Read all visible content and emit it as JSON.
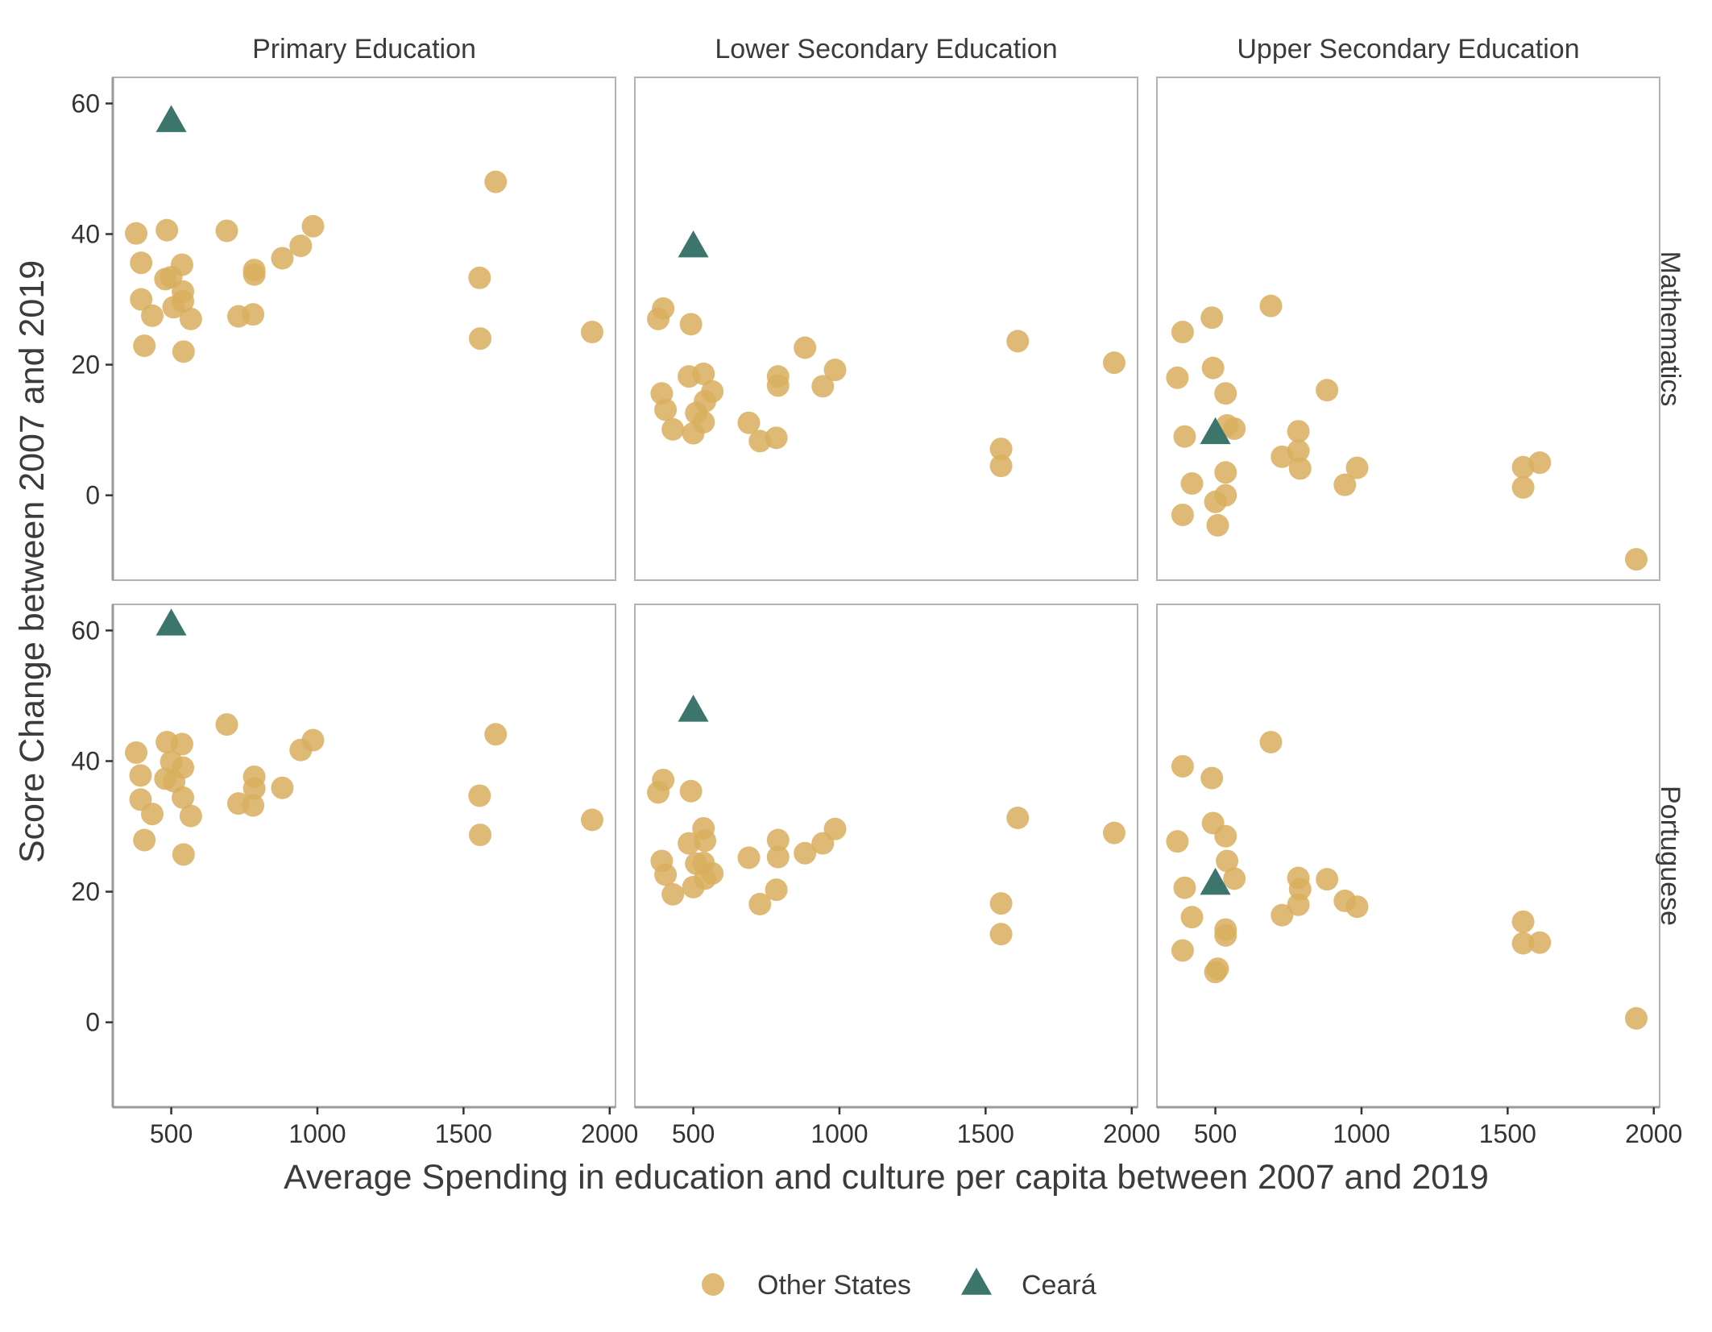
{
  "chart_data": {
    "type": "scatter",
    "facets": {
      "columns": [
        "Primary Education",
        "Lower Secondary Education",
        "Upper Secondary Education"
      ],
      "rows": [
        "Mathematics",
        "Portuguese"
      ]
    },
    "xlabel": "Average Spending in education and culture per capita between 2007 and 2019",
    "ylabel": "Score Change between 2007 and 2019",
    "x_ticks": [
      "500",
      "1000",
      "1500",
      "2000"
    ],
    "y_ticks": [
      "0",
      "20",
      "40",
      "60"
    ],
    "xlim": [
      300,
      2020
    ],
    "ylim": [
      -13,
      64
    ],
    "legend": {
      "position": "bottom",
      "items": [
        {
          "label": "Other States",
          "shape": "circle",
          "color": "#D9AE5E"
        },
        {
          "label": "Ceará",
          "shape": "triangle",
          "color": "#3C756C"
        }
      ]
    },
    "colors": {
      "other_states": "#D9AE5E",
      "ceara": "#3C756C"
    },
    "panels": [
      {
        "row": "Mathematics",
        "column": "Primary Education",
        "ceara": {
          "x": 500,
          "y": 57.2
        },
        "other_states": [
          [
            380,
            40.1
          ],
          [
            397,
            35.6
          ],
          [
            397,
            30.0
          ],
          [
            408,
            22.9
          ],
          [
            435,
            27.5
          ],
          [
            485,
            40.6
          ],
          [
            480,
            33.1
          ],
          [
            500,
            33.4
          ],
          [
            508,
            28.8
          ],
          [
            537,
            35.3
          ],
          [
            540,
            31.2
          ],
          [
            540,
            29.7
          ],
          [
            542,
            22.0
          ],
          [
            567,
            27.0
          ],
          [
            690,
            40.5
          ],
          [
            730,
            27.4
          ],
          [
            780,
            27.7
          ],
          [
            784,
            33.8
          ],
          [
            784,
            34.5
          ],
          [
            880,
            36.3
          ],
          [
            943,
            38.2
          ],
          [
            985,
            41.2
          ],
          [
            1555,
            33.3
          ],
          [
            1557,
            24.0
          ],
          [
            1610,
            48.0
          ],
          [
            1940,
            25.0
          ]
        ]
      },
      {
        "row": "Mathematics",
        "column": "Lower Secondary Education",
        "ceara": {
          "x": 500,
          "y": 38.0
        },
        "other_states": [
          [
            380,
            27.0
          ],
          [
            397,
            28.6
          ],
          [
            392,
            15.6
          ],
          [
            405,
            13.1
          ],
          [
            430,
            10.1
          ],
          [
            485,
            18.2
          ],
          [
            492,
            26.2
          ],
          [
            500,
            9.5
          ],
          [
            510,
            12.6
          ],
          [
            535,
            18.6
          ],
          [
            540,
            14.4
          ],
          [
            535,
            11.2
          ],
          [
            565,
            15.9
          ],
          [
            690,
            11.1
          ],
          [
            728,
            8.3
          ],
          [
            784,
            8.8
          ],
          [
            790,
            18.2
          ],
          [
            790,
            16.8
          ],
          [
            882,
            22.6
          ],
          [
            943,
            16.7
          ],
          [
            985,
            19.2
          ],
          [
            1553,
            7.1
          ],
          [
            1553,
            4.5
          ],
          [
            1610,
            23.6
          ],
          [
            1940,
            20.3
          ]
        ]
      },
      {
        "row": "Mathematics",
        "column": "Upper Secondary Education",
        "ceara": {
          "x": 500,
          "y": 9.4
        },
        "other_states": [
          [
            370,
            18.0
          ],
          [
            388,
            25.0
          ],
          [
            388,
            -3.0
          ],
          [
            395,
            9.0
          ],
          [
            420,
            1.8
          ],
          [
            488,
            27.2
          ],
          [
            492,
            19.5
          ],
          [
            500,
            -1.0
          ],
          [
            508,
            -4.6
          ],
          [
            535,
            15.6
          ],
          [
            535,
            3.5
          ],
          [
            535,
            0.0
          ],
          [
            540,
            10.7
          ],
          [
            565,
            10.2
          ],
          [
            690,
            29.0
          ],
          [
            728,
            5.9
          ],
          [
            784,
            6.8
          ],
          [
            784,
            9.8
          ],
          [
            790,
            4.1
          ],
          [
            882,
            16.1
          ],
          [
            943,
            1.6
          ],
          [
            985,
            4.2
          ],
          [
            1553,
            4.3
          ],
          [
            1553,
            1.2
          ],
          [
            1610,
            5.0
          ],
          [
            1940,
            -9.8
          ]
        ]
      },
      {
        "row": "Portuguese",
        "column": "Primary Education",
        "ceara": {
          "x": 500,
          "y": 60.8
        },
        "other_states": [
          [
            380,
            41.3
          ],
          [
            395,
            37.8
          ],
          [
            395,
            34.1
          ],
          [
            408,
            27.9
          ],
          [
            435,
            31.9
          ],
          [
            485,
            42.9
          ],
          [
            480,
            37.3
          ],
          [
            500,
            39.9
          ],
          [
            510,
            36.9
          ],
          [
            537,
            42.6
          ],
          [
            540,
            39.0
          ],
          [
            540,
            34.4
          ],
          [
            542,
            25.7
          ],
          [
            567,
            31.6
          ],
          [
            690,
            45.6
          ],
          [
            730,
            33.5
          ],
          [
            780,
            33.2
          ],
          [
            784,
            37.6
          ],
          [
            784,
            35.8
          ],
          [
            880,
            35.9
          ],
          [
            943,
            41.7
          ],
          [
            985,
            43.2
          ],
          [
            1555,
            34.7
          ],
          [
            1557,
            28.7
          ],
          [
            1610,
            44.1
          ],
          [
            1940,
            31.0
          ]
        ]
      },
      {
        "row": "Portuguese",
        "column": "Lower Secondary Education",
        "ceara": {
          "x": 500,
          "y": 47.6
        },
        "other_states": [
          [
            380,
            35.2
          ],
          [
            397,
            37.1
          ],
          [
            392,
            24.7
          ],
          [
            405,
            22.6
          ],
          [
            430,
            19.6
          ],
          [
            485,
            27.4
          ],
          [
            492,
            35.4
          ],
          [
            500,
            20.7
          ],
          [
            510,
            24.3
          ],
          [
            535,
            29.7
          ],
          [
            540,
            27.8
          ],
          [
            535,
            24.4
          ],
          [
            540,
            22.0
          ],
          [
            565,
            22.8
          ],
          [
            690,
            25.2
          ],
          [
            728,
            18.1
          ],
          [
            784,
            20.3
          ],
          [
            790,
            27.9
          ],
          [
            790,
            25.3
          ],
          [
            882,
            25.9
          ],
          [
            943,
            27.4
          ],
          [
            985,
            29.6
          ],
          [
            1553,
            18.2
          ],
          [
            1553,
            13.5
          ],
          [
            1610,
            31.3
          ],
          [
            1940,
            29.0
          ]
        ]
      },
      {
        "row": "Portuguese",
        "column": "Upper Secondary Education",
        "ceara": {
          "x": 500,
          "y": 21.1
        },
        "other_states": [
          [
            370,
            27.7
          ],
          [
            388,
            39.2
          ],
          [
            388,
            11.0
          ],
          [
            395,
            20.6
          ],
          [
            420,
            16.1
          ],
          [
            488,
            37.4
          ],
          [
            492,
            30.5
          ],
          [
            500,
            7.7
          ],
          [
            508,
            8.2
          ],
          [
            535,
            28.5
          ],
          [
            535,
            14.2
          ],
          [
            535,
            13.3
          ],
          [
            540,
            24.7
          ],
          [
            565,
            22.0
          ],
          [
            690,
            42.9
          ],
          [
            728,
            16.4
          ],
          [
            784,
            18.0
          ],
          [
            784,
            22.1
          ],
          [
            790,
            20.4
          ],
          [
            882,
            21.9
          ],
          [
            943,
            18.6
          ],
          [
            985,
            17.7
          ],
          [
            1553,
            15.4
          ],
          [
            1553,
            12.1
          ],
          [
            1610,
            12.2
          ],
          [
            1940,
            0.6
          ]
        ]
      }
    ]
  }
}
